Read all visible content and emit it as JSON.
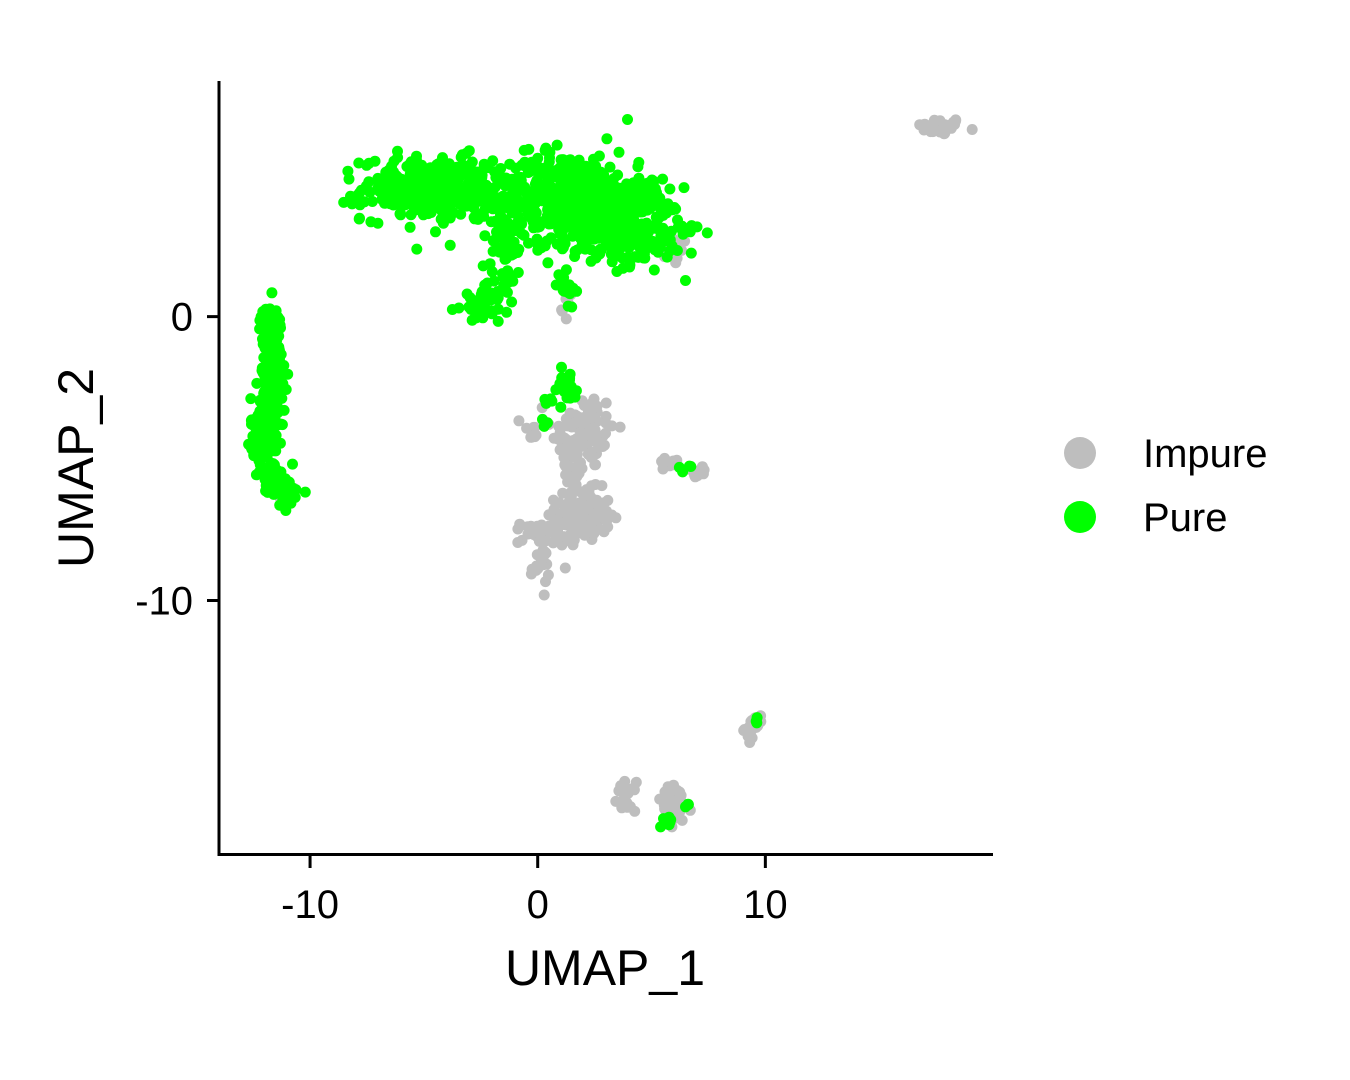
{
  "chart_data": {
    "type": "scatter",
    "xlabel": "UMAP_1",
    "ylabel": "UMAP_2",
    "xlim": [
      -14,
      20
    ],
    "ylim": [
      -19,
      8.3
    ],
    "x_ticks": [
      {
        "value": -10,
        "label": "-10"
      },
      {
        "value": 0,
        "label": "0"
      },
      {
        "value": 10,
        "label": "10"
      }
    ],
    "y_ticks": [
      {
        "value": 0,
        "label": "0"
      },
      {
        "value": -10,
        "label": "-10"
      }
    ],
    "grid": false,
    "legend_position": "right",
    "series": [
      {
        "name": "Impure",
        "color": "#BEBEBE",
        "clusters": [
          {
            "cx": 17.7,
            "cy": 6.7,
            "sx": 0.5,
            "sy": 0.15,
            "n": 40
          },
          {
            "cx": 6.0,
            "cy": 2.3,
            "sx": 0.3,
            "sy": 0.25,
            "n": 20
          },
          {
            "cx": 1.2,
            "cy": 0.6,
            "sx": 0.2,
            "sy": 0.4,
            "n": 10
          },
          {
            "cx": 2.0,
            "cy": -4.0,
            "sx": 0.7,
            "sy": 0.7,
            "n": 90
          },
          {
            "cx": 1.6,
            "cy": -5.5,
            "sx": 0.25,
            "sy": 0.8,
            "n": 40
          },
          {
            "cx": 2.0,
            "cy": -7.0,
            "sx": 0.6,
            "sy": 0.45,
            "n": 140
          },
          {
            "cx": 0.1,
            "cy": -7.6,
            "sx": 0.6,
            "sy": 0.2,
            "n": 30
          },
          {
            "cx": 0.1,
            "cy": -8.8,
            "sx": 0.2,
            "sy": 0.35,
            "n": 20
          },
          {
            "cx": -0.3,
            "cy": -4.1,
            "sx": 0.25,
            "sy": 0.15,
            "n": 10
          },
          {
            "cx": 5.8,
            "cy": -5.2,
            "sx": 0.3,
            "sy": 0.15,
            "n": 10
          },
          {
            "cx": 7.0,
            "cy": -5.5,
            "sx": 0.2,
            "sy": 0.12,
            "n": 8
          },
          {
            "cx": -10.9,
            "cy": -6.3,
            "sx": 0.2,
            "sy": 0.2,
            "n": 8
          },
          {
            "cx": 9.5,
            "cy": -14.5,
            "sx": 0.2,
            "sy": 0.2,
            "n": 15
          },
          {
            "cx": 3.9,
            "cy": -16.9,
            "sx": 0.2,
            "sy": 0.25,
            "n": 20
          },
          {
            "cx": 6.0,
            "cy": -17.3,
            "sx": 0.4,
            "sy": 0.4,
            "n": 35
          }
        ]
      },
      {
        "name": "Pure",
        "color": "#00FF00",
        "clusters": [
          {
            "cx": -4.5,
            "cy": 4.5,
            "sx": 1.6,
            "sy": 0.55,
            "n": 330
          },
          {
            "cx": -6.4,
            "cy": 4.6,
            "sx": 0.4,
            "sy": 0.15,
            "n": 30
          },
          {
            "cx": 1.3,
            "cy": 4.2,
            "sx": 1.6,
            "sy": 0.8,
            "n": 470
          },
          {
            "cx": 4.0,
            "cy": 3.0,
            "sx": 1.2,
            "sy": 0.6,
            "n": 250
          },
          {
            "cx": 4.5,
            "cy": 4.3,
            "sx": 0.6,
            "sy": 0.3,
            "n": 50
          },
          {
            "cx": -1.3,
            "cy": 2.6,
            "sx": 0.35,
            "sy": 0.55,
            "n": 40
          },
          {
            "cx": -2.0,
            "cy": 0.9,
            "sx": 0.4,
            "sy": 0.55,
            "n": 35
          },
          {
            "cx": -2.7,
            "cy": 0.3,
            "sx": 0.35,
            "sy": 0.2,
            "n": 25
          },
          {
            "cx": 1.2,
            "cy": 1.2,
            "sx": 0.2,
            "sy": 0.35,
            "n": 20
          },
          {
            "cx": -11.7,
            "cy": -0.6,
            "sx": 0.25,
            "sy": 0.5,
            "n": 60
          },
          {
            "cx": -11.6,
            "cy": -2.2,
            "sx": 0.25,
            "sy": 0.6,
            "n": 90
          },
          {
            "cx": -12.0,
            "cy": -4.0,
            "sx": 0.3,
            "sy": 0.6,
            "n": 130
          },
          {
            "cx": -11.5,
            "cy": -5.6,
            "sx": 0.3,
            "sy": 0.35,
            "n": 40
          },
          {
            "cx": -10.9,
            "cy": -6.3,
            "sx": 0.25,
            "sy": 0.2,
            "n": 25
          },
          {
            "cx": 1.2,
            "cy": -2.5,
            "sx": 0.35,
            "sy": 0.3,
            "n": 30
          },
          {
            "cx": 0.4,
            "cy": -2.9,
            "sx": 0.15,
            "sy": 0.1,
            "n": 6
          },
          {
            "cx": 0.3,
            "cy": -3.8,
            "sx": 0.1,
            "sy": 0.1,
            "n": 3
          },
          {
            "cx": 6.5,
            "cy": -5.3,
            "sx": 0.2,
            "sy": 0.1,
            "n": 5
          },
          {
            "cx": 9.7,
            "cy": -14.2,
            "sx": 0.05,
            "sy": 0.05,
            "n": 3
          },
          {
            "cx": 5.8,
            "cy": -17.8,
            "sx": 0.15,
            "sy": 0.1,
            "n": 8
          },
          {
            "cx": 6.5,
            "cy": -17.3,
            "sx": 0.1,
            "sy": 0.1,
            "n": 3
          }
        ]
      }
    ]
  }
}
